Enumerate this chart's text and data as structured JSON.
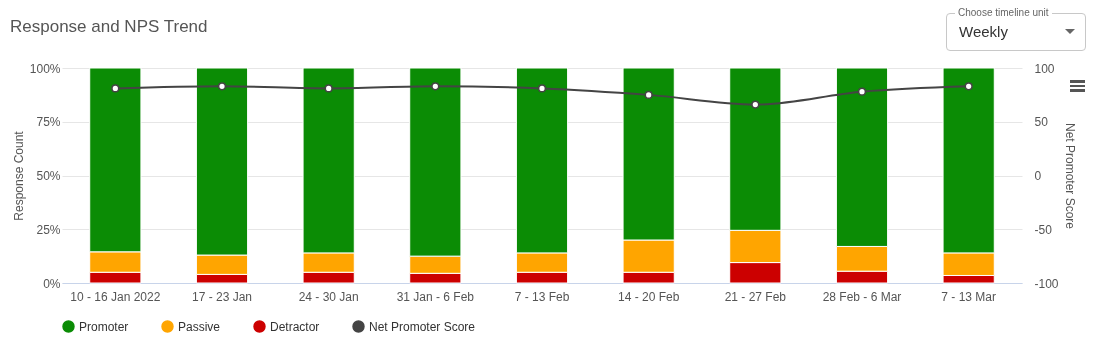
{
  "chart_data": {
    "type": "bar",
    "title": "Response and NPS Trend",
    "ylabel": "Response Count",
    "y2label": "Net Promoter Score",
    "categories": [
      "10 - 16 Jan 2022",
      "17 - 23 Jan",
      "24 - 30 Jan",
      "31 Jan - 6 Feb",
      "7 - 13 Feb",
      "14 - 20 Feb",
      "21 - 27 Feb",
      "28 Feb - 6 Mar",
      "7 - 13 Mar"
    ],
    "stacked": true,
    "series": [
      {
        "name": "Detractor",
        "color": "#cc0000",
        "values": [
          5,
          4,
          5,
          4.5,
          5,
          5,
          9.5,
          5.5,
          3.5
        ]
      },
      {
        "name": "Passive",
        "color": "#ffa500",
        "values": [
          9.5,
          9,
          9,
          8,
          9,
          15,
          15,
          11.5,
          10.5
        ]
      },
      {
        "name": "Promoter",
        "color": "#0b8c05",
        "values": [
          85.5,
          87,
          86,
          87.5,
          86,
          80,
          75.5,
          83,
          86
        ]
      },
      {
        "name": "Net Promoter Score",
        "type": "line",
        "axis": "y2",
        "color": "#444444",
        "values": [
          81,
          83,
          81,
          83,
          81,
          75,
          66,
          78,
          83
        ]
      }
    ],
    "ylim": [
      0,
      100
    ],
    "yticks": [
      {
        "value": 0,
        "label": "0%"
      },
      {
        "value": 25,
        "label": "25%"
      },
      {
        "value": 50,
        "label": "50%"
      },
      {
        "value": 75,
        "label": "75%"
      },
      {
        "value": 100,
        "label": "100%"
      }
    ],
    "y2lim": [
      -100,
      100
    ],
    "y2ticks": [
      -100,
      -50,
      0,
      50,
      100
    ],
    "grid": "y",
    "legend": "bottom",
    "marker": "circle",
    "annotations": [
      "Choose timeline unit",
      "Weekly"
    ]
  }
}
